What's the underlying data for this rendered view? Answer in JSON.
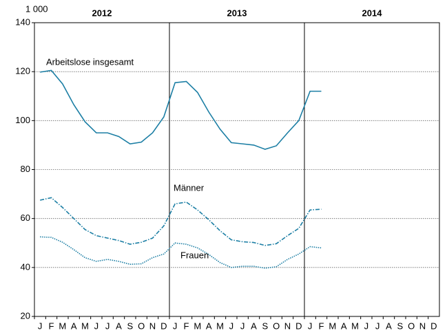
{
  "chart_data": {
    "type": "line",
    "y_unit_label": "1 000",
    "year_labels": [
      "2012",
      "2013",
      "2014"
    ],
    "categories": [
      "J",
      "F",
      "M",
      "A",
      "M",
      "J",
      "J",
      "A",
      "S",
      "O",
      "N",
      "D",
      "J",
      "F",
      "M",
      "A",
      "M",
      "J",
      "J",
      "A",
      "S",
      "O",
      "N",
      "D",
      "J",
      "F",
      "M",
      "A",
      "M",
      "J",
      "J",
      "A",
      "S",
      "O",
      "N",
      "D"
    ],
    "series": [
      {
        "name": "Arbeitslose insgesamt",
        "color": "#1b7ea4",
        "line_style": "solid",
        "values": [
          119.8,
          120.5,
          115,
          106.5,
          99.5,
          95,
          95,
          93.5,
          90.5,
          91.2,
          95,
          101.5,
          115.5,
          116,
          111.5,
          103.5,
          96.5,
          91,
          90.5,
          90,
          88.3,
          89.7,
          95,
          100,
          112,
          112,
          null,
          null,
          null,
          null,
          null,
          null,
          null,
          null,
          null,
          null
        ]
      },
      {
        "name": "Männer",
        "color": "#1b7ea4",
        "line_style": "dashdot",
        "values": [
          67.5,
          68.5,
          64.5,
          60,
          55.5,
          53,
          52,
          51,
          49.5,
          50.3,
          52,
          57,
          66,
          66.7,
          63.5,
          59.5,
          55,
          51.3,
          50.5,
          50.2,
          49,
          49.7,
          53,
          56,
          63.5,
          63.8,
          null,
          null,
          null,
          null,
          null,
          null,
          null,
          null,
          null,
          null
        ]
      },
      {
        "name": "Frauen",
        "color": "#1b7ea4",
        "line_style": "dotted",
        "values": [
          52.5,
          52.3,
          50.3,
          47.3,
          44,
          42.5,
          43.3,
          42.5,
          41.3,
          41.5,
          44,
          45.5,
          50,
          49.5,
          48,
          45.3,
          42,
          40,
          40.5,
          40.5,
          39.7,
          40.3,
          43.3,
          45.5,
          48.5,
          48,
          null,
          null,
          null,
          null,
          null,
          null,
          null,
          null,
          null,
          null
        ]
      }
    ],
    "ylim": [
      20,
      140
    ],
    "yticks": [
      20,
      40,
      60,
      80,
      100,
      120,
      140
    ],
    "grid": true
  }
}
